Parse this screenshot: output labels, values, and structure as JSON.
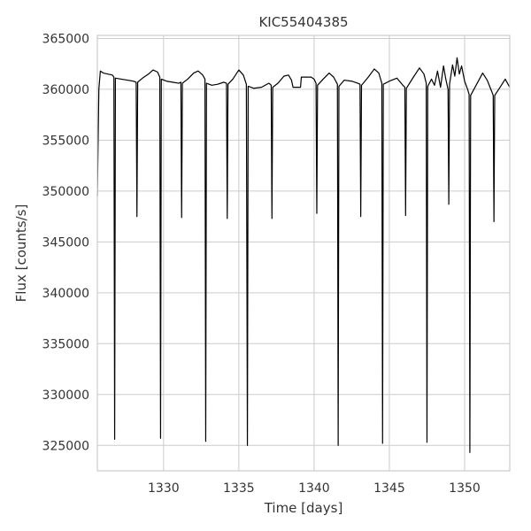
{
  "chart_data": {
    "type": "line",
    "title": "KIC55404385",
    "xlabel": "Time [days]",
    "ylabel": "Flux [counts/s]",
    "xlim": [
      1325.6,
      1353.0
    ],
    "ylim": [
      322500,
      365300
    ],
    "x_ticks": [
      1330,
      1335,
      1340,
      1345,
      1350
    ],
    "y_ticks": [
      325000,
      330000,
      335000,
      340000,
      345000,
      350000,
      355000,
      360000,
      365000
    ],
    "x_tick_labels": [
      "1330",
      "1335",
      "1340",
      "1345",
      "1350"
    ],
    "y_tick_labels": [
      "325000",
      "330000",
      "335000",
      "340000",
      "345000",
      "350000",
      "355000",
      "360000",
      "365000"
    ],
    "grid": true,
    "line_color": "#000000",
    "series": [
      {
        "points": [
          [
            1325.6,
            349500
          ],
          [
            1325.7,
            360000
          ],
          [
            1325.8,
            361800
          ],
          [
            1326.0,
            361600
          ],
          [
            1326.3,
            361500
          ],
          [
            1326.6,
            361400
          ],
          [
            1326.7,
            361200
          ],
          [
            1326.75,
            325600
          ],
          [
            1326.8,
            361100
          ],
          [
            1327.2,
            361000
          ],
          [
            1327.6,
            360900
          ],
          [
            1328.0,
            360800
          ],
          [
            1328.18,
            360700
          ],
          [
            1328.23,
            347500
          ],
          [
            1328.28,
            360700
          ],
          [
            1328.6,
            361100
          ],
          [
            1329.0,
            361500
          ],
          [
            1329.3,
            361900
          ],
          [
            1329.6,
            361700
          ],
          [
            1329.75,
            361200
          ],
          [
            1329.8,
            325700
          ],
          [
            1329.85,
            361000
          ],
          [
            1330.2,
            360800
          ],
          [
            1330.6,
            360700
          ],
          [
            1331.0,
            360600
          ],
          [
            1331.15,
            360700
          ],
          [
            1331.2,
            347400
          ],
          [
            1331.25,
            360600
          ],
          [
            1331.6,
            361000
          ],
          [
            1332.0,
            361600
          ],
          [
            1332.3,
            361800
          ],
          [
            1332.6,
            361400
          ],
          [
            1332.75,
            361000
          ],
          [
            1332.8,
            325400
          ],
          [
            1332.85,
            360600
          ],
          [
            1333.2,
            360400
          ],
          [
            1333.6,
            360500
          ],
          [
            1334.0,
            360700
          ],
          [
            1334.18,
            360600
          ],
          [
            1334.23,
            347300
          ],
          [
            1334.28,
            360500
          ],
          [
            1334.6,
            361000
          ],
          [
            1335.0,
            361900
          ],
          [
            1335.3,
            361400
          ],
          [
            1335.5,
            360500
          ],
          [
            1335.57,
            325000
          ],
          [
            1335.62,
            360300
          ],
          [
            1336.0,
            360100
          ],
          [
            1336.5,
            360200
          ],
          [
            1337.0,
            360600
          ],
          [
            1337.15,
            360400
          ],
          [
            1337.2,
            347300
          ],
          [
            1337.25,
            360200
          ],
          [
            1337.6,
            360600
          ],
          [
            1338.0,
            361300
          ],
          [
            1338.3,
            361400
          ],
          [
            1338.5,
            360900
          ],
          [
            1338.6,
            360200
          ],
          [
            1339.1,
            360200
          ],
          [
            1339.15,
            361200
          ],
          [
            1339.8,
            361200
          ],
          [
            1340.0,
            361000
          ],
          [
            1340.13,
            360600
          ],
          [
            1340.18,
            347800
          ],
          [
            1340.23,
            360400
          ],
          [
            1340.6,
            361000
          ],
          [
            1341.0,
            361600
          ],
          [
            1341.3,
            361200
          ],
          [
            1341.55,
            360500
          ],
          [
            1341.6,
            325000
          ],
          [
            1341.65,
            360300
          ],
          [
            1342.0,
            360900
          ],
          [
            1342.5,
            360800
          ],
          [
            1342.9,
            360600
          ],
          [
            1343.05,
            360500
          ],
          [
            1343.1,
            347500
          ],
          [
            1343.15,
            360400
          ],
          [
            1343.6,
            361200
          ],
          [
            1344.0,
            362000
          ],
          [
            1344.3,
            361600
          ],
          [
            1344.5,
            360600
          ],
          [
            1344.55,
            325200
          ],
          [
            1344.6,
            360500
          ],
          [
            1345.0,
            360800
          ],
          [
            1345.5,
            361100
          ],
          [
            1345.9,
            360400
          ],
          [
            1346.03,
            360200
          ],
          [
            1346.08,
            347600
          ],
          [
            1346.13,
            360100
          ],
          [
            1346.6,
            361200
          ],
          [
            1347.0,
            362100
          ],
          [
            1347.3,
            361500
          ],
          [
            1347.45,
            360600
          ],
          [
            1347.5,
            325300
          ],
          [
            1347.55,
            360300
          ],
          [
            1347.8,
            361000
          ],
          [
            1348.0,
            360400
          ],
          [
            1348.2,
            361800
          ],
          [
            1348.4,
            360200
          ],
          [
            1348.6,
            362300
          ],
          [
            1348.75,
            361000
          ],
          [
            1348.9,
            360000
          ],
          [
            1348.95,
            348700
          ],
          [
            1349.0,
            360500
          ],
          [
            1349.2,
            362400
          ],
          [
            1349.35,
            361300
          ],
          [
            1349.5,
            363100
          ],
          [
            1349.65,
            361500
          ],
          [
            1349.8,
            362300
          ],
          [
            1350.0,
            360800
          ],
          [
            1350.2,
            360000
          ],
          [
            1350.3,
            359500
          ],
          [
            1350.35,
            324300
          ],
          [
            1350.4,
            359400
          ],
          [
            1350.8,
            360500
          ],
          [
            1351.2,
            361600
          ],
          [
            1351.5,
            360900
          ],
          [
            1351.8,
            359800
          ],
          [
            1351.9,
            359400
          ],
          [
            1351.95,
            347000
          ],
          [
            1352.0,
            359400
          ],
          [
            1352.4,
            360300
          ],
          [
            1352.7,
            361000
          ],
          [
            1353.0,
            360200
          ]
        ]
      }
    ]
  }
}
